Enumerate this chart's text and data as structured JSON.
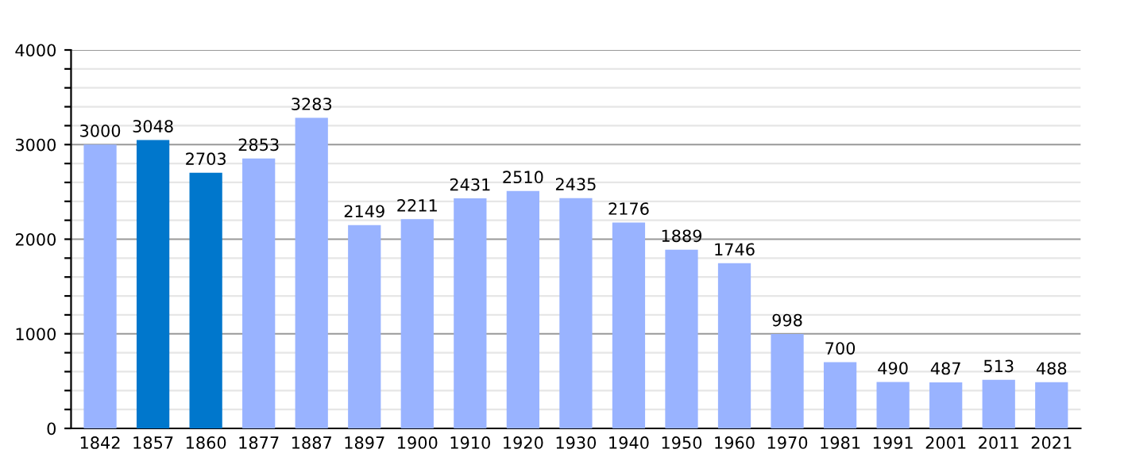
{
  "chart_data": {
    "type": "bar",
    "categories": [
      "1842",
      "1857",
      "1860",
      "1877",
      "1887",
      "1897",
      "1900",
      "1910",
      "1920",
      "1930",
      "1940",
      "1950",
      "1960",
      "1970",
      "1981",
      "1991",
      "2001",
      "2011",
      "2021"
    ],
    "values": [
      3000,
      3048,
      2703,
      2853,
      3283,
      2149,
      2211,
      2431,
      2510,
      2435,
      2176,
      1889,
      1746,
      998,
      700,
      490,
      487,
      513,
      488
    ],
    "colors": [
      "#99b3ff",
      "#0077cc",
      "#0077cc",
      "#99b3ff",
      "#99b3ff",
      "#99b3ff",
      "#99b3ff",
      "#99b3ff",
      "#99b3ff",
      "#99b3ff",
      "#99b3ff",
      "#99b3ff",
      "#99b3ff",
      "#99b3ff",
      "#99b3ff",
      "#99b3ff",
      "#99b3ff",
      "#99b3ff",
      "#99b3ff"
    ],
    "ylim": [
      0,
      4000
    ],
    "yticks": [
      0,
      {
        "value": 200,
        "label": null
      },
      {
        "value": 400,
        "label": null
      },
      {
        "value": 600,
        "label": null
      },
      {
        "value": 800,
        "label": null
      },
      1000,
      {
        "value": 1200,
        "label": null
      },
      {
        "value": 1400,
        "label": null
      },
      {
        "value": 1600,
        "label": null
      },
      {
        "value": 1800,
        "label": null
      },
      2000,
      {
        "value": 2200,
        "label": null
      },
      {
        "value": 2400,
        "label": null
      },
      {
        "value": 2600,
        "label": null
      },
      {
        "value": 2800,
        "label": null
      },
      3000,
      {
        "value": 3200,
        "label": null
      },
      {
        "value": 3400,
        "label": null
      },
      {
        "value": 3600,
        "label": null
      },
      {
        "value": 3800,
        "label": null
      },
      4000
    ],
    "grid": "y",
    "data_labels": true
  }
}
